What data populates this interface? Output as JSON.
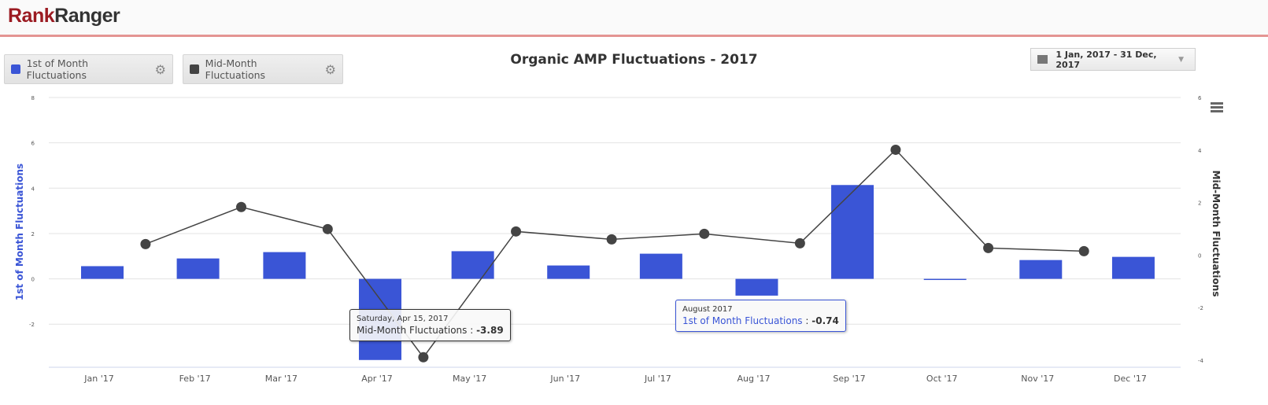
{
  "header": {
    "logo_part1": "Rank",
    "logo_part2": "Ranger"
  },
  "legend": [
    {
      "label": "1st of Month Fluctuations",
      "color": "#3a55d6"
    },
    {
      "label": "Mid-Month Fluctuations",
      "color": "#444444"
    }
  ],
  "date_range": {
    "label": "1 Jan, 2017 - 31 Dec, 2017",
    "icon": "calendar-icon"
  },
  "tooltips": {
    "mid": {
      "date": "Saturday, Apr 15, 2017",
      "series": "Mid-Month Fluctuations",
      "value": "-3.89"
    },
    "first": {
      "date": "August 2017",
      "series": "1st of Month Fluctuations",
      "value": "-0.74"
    }
  },
  "chart_data": {
    "type": "bar+line",
    "title": "Organic AMP Fluctuations - 2017",
    "x_tick_labels": [
      "Jan '17",
      "Feb '17",
      "Mar '17",
      "Apr '17",
      "May '17",
      "Jun '17",
      "Jul '17",
      "Aug '17",
      "Sep '17",
      "Oct '17",
      "Nov '17",
      "Dec '17"
    ],
    "ylabel_left": "1st of Month Fluctuations",
    "ylabel_right": "Mid-Month Fluctuations",
    "yticks_left": [
      8,
      6,
      4,
      2,
      0,
      -2
    ],
    "yticks_right": [
      6,
      4,
      2,
      0,
      -2,
      -4
    ],
    "ylim_left": [
      -3.9,
      8
    ],
    "ylim_right": [
      -4.27,
      6
    ],
    "series": [
      {
        "name": "1st of Month Fluctuations",
        "type": "bar",
        "axis": "left",
        "color": "#3a55d6",
        "x": [
          "2017-01-01",
          "2017-02-01",
          "2017-03-01",
          "2017-04-01",
          "2017-05-01",
          "2017-06-01",
          "2017-07-01",
          "2017-08-01",
          "2017-09-01",
          "2017-10-01",
          "2017-11-01",
          "2017-12-01"
        ],
        "values": [
          0.56,
          0.9,
          1.18,
          -3.58,
          1.22,
          0.59,
          1.11,
          -0.74,
          4.14,
          -0.05,
          0.83,
          0.97
        ]
      },
      {
        "name": "Mid-Month Fluctuations",
        "type": "line",
        "axis": "right",
        "color": "#444444",
        "x": [
          "2017-01-15",
          "2017-02-15",
          "2017-03-15",
          "2017-04-15",
          "2017-05-15",
          "2017-06-15",
          "2017-07-15",
          "2017-08-15",
          "2017-09-15",
          "2017-10-15",
          "2017-11-15"
        ],
        "values": [
          0.42,
          1.83,
          0.99,
          -3.89,
          0.9,
          0.6,
          0.81,
          0.45,
          4.01,
          0.27,
          0.15
        ]
      }
    ]
  }
}
